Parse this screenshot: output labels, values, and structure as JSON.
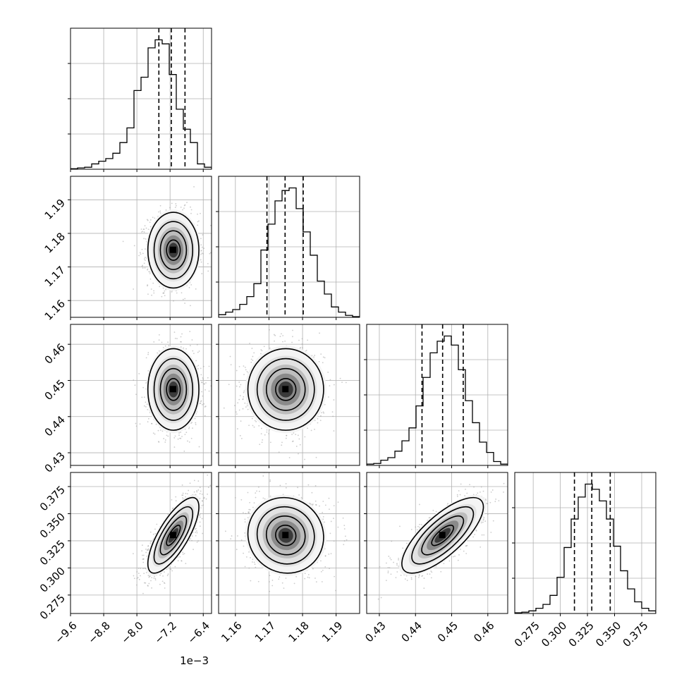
{
  "chart_data": {
    "type": "corner",
    "parameters": [
      {
        "range": [
          -9.6,
          -6.2
        ],
        "ticks": [
          -9.6,
          -8.8,
          -8.0,
          -7.2,
          -6.4
        ],
        "tick_labels": [
          "−9.6",
          "−8.8",
          "−8.0",
          "−7.2",
          "−6.4"
        ],
        "offset_label": "1e−3",
        "mean": -7.12,
        "std": 0.3,
        "quantiles": [
          -7.47,
          -7.17,
          -6.84
        ],
        "hist_counts": [
          0.004,
          0.01,
          0.015,
          0.04,
          0.06,
          0.08,
          0.12,
          0.2,
          0.31,
          0.59,
          0.69,
          0.91,
          0.97,
          0.94,
          0.71,
          0.45,
          0.3,
          0.2,
          0.04,
          0.015
        ]
      },
      {
        "range": [
          1.155,
          1.197
        ],
        "ticks": [
          1.16,
          1.17,
          1.18,
          1.19
        ],
        "tick_labels": [
          "1.16",
          "1.17",
          "1.18",
          "1.19"
        ],
        "mean": 1.175,
        "std": 0.0055,
        "quantiles": [
          1.1694,
          1.1748,
          1.1802
        ],
        "hist_counts": [
          0.02,
          0.04,
          0.06,
          0.1,
          0.16,
          0.26,
          0.52,
          0.72,
          0.9,
          0.98,
          1.0,
          0.84,
          0.66,
          0.48,
          0.28,
          0.18,
          0.08,
          0.04,
          0.015,
          0.005
        ]
      },
      {
        "range": [
          0.4265,
          0.4655
        ],
        "ticks": [
          0.43,
          0.44,
          0.45,
          0.46
        ],
        "tick_labels": [
          "0.43",
          "0.44",
          "0.45",
          "0.46"
        ],
        "mean": 0.4475,
        "std": 0.0055,
        "quantiles": [
          0.4418,
          0.4475,
          0.4532
        ],
        "hist_counts": [
          0.01,
          0.015,
          0.04,
          0.06,
          0.11,
          0.19,
          0.29,
          0.46,
          0.68,
          0.87,
          0.96,
          1.0,
          0.93,
          0.74,
          0.5,
          0.33,
          0.18,
          0.1,
          0.03,
          0.01
        ]
      },
      {
        "range": [
          0.258,
          0.388
        ],
        "ticks": [
          0.275,
          0.3,
          0.325,
          0.35,
          0.375
        ],
        "tick_labels": [
          "0.275",
          "0.300",
          "0.325",
          "0.350",
          "0.375"
        ],
        "mean": 0.33,
        "std": 0.017,
        "quantiles": [
          0.313,
          0.329,
          0.346
        ],
        "hist_counts": [
          0.005,
          0.01,
          0.02,
          0.04,
          0.07,
          0.14,
          0.28,
          0.51,
          0.73,
          0.9,
          1.0,
          0.96,
          0.87,
          0.73,
          0.52,
          0.33,
          0.19,
          0.09,
          0.04,
          0.02
        ]
      }
    ],
    "correlations": [
      [
        1.0,
        0.0,
        0.0,
        0.75
      ],
      [
        0.0,
        1.0,
        0.0,
        -0.05
      ],
      [
        0.0,
        0.0,
        1.0,
        0.75
      ],
      [
        0.75,
        -0.05,
        0.75,
        1.0
      ]
    ],
    "contour_levels_sigma": [
      0.5,
      1.0,
      1.5,
      2.0
    ],
    "grid": true,
    "quantile_style": "dashed",
    "colors": {
      "line": "#000000",
      "grid": "#b0b0b0",
      "points": "#9a9a9a"
    }
  }
}
